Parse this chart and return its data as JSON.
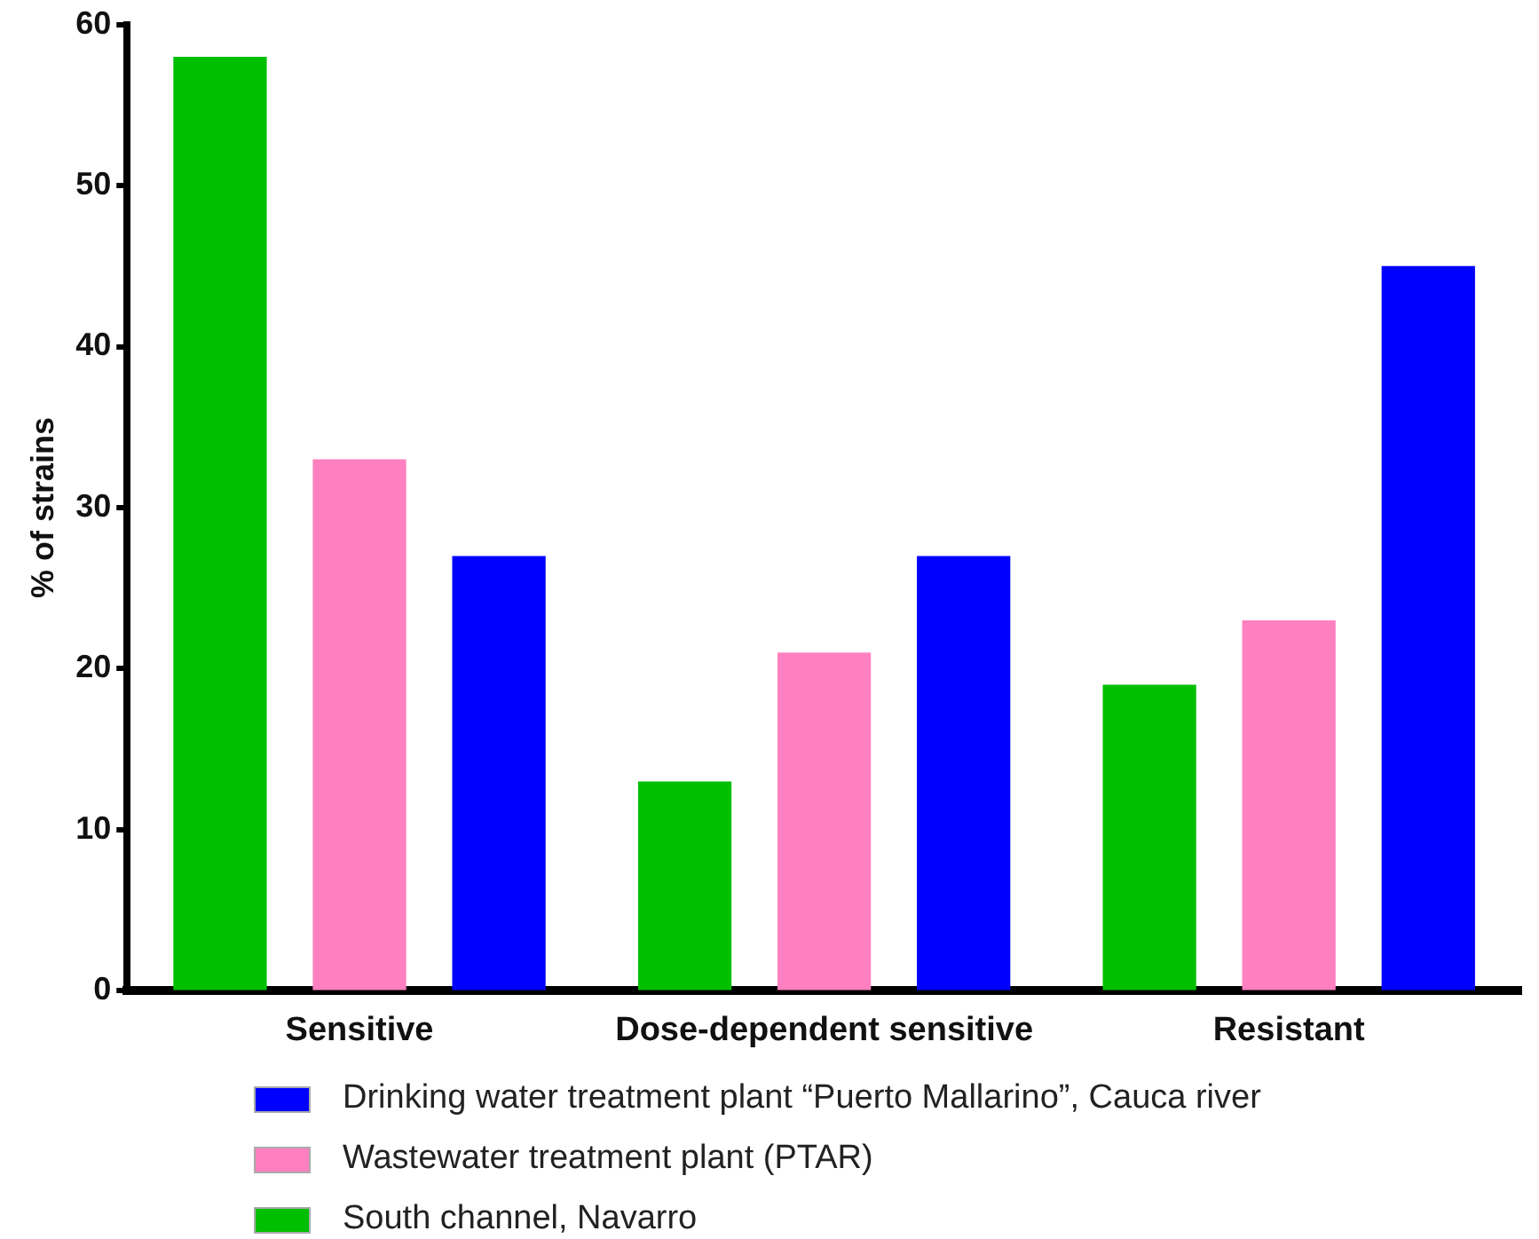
{
  "chart_data": {
    "type": "bar",
    "ylabel": "% of strains",
    "categories": [
      "Sensitive",
      "Dose-dependent sensitive",
      "Resistant"
    ],
    "series": [
      {
        "name": "South channel, Navarro",
        "color": "#00bf00",
        "values": [
          58,
          13,
          19
        ]
      },
      {
        "name": "Wastewater treatment plant (PTAR)",
        "color": "#ff80c0",
        "values": [
          33,
          21,
          23
        ]
      },
      {
        "name": "Drinking water treatment plant “Puerto Mallarino”, Cauca river",
        "color": "#0000ff",
        "values": [
          27,
          27,
          45
        ]
      }
    ],
    "ylim": [
      0,
      60
    ],
    "yticks": [
      0,
      10,
      20,
      30,
      40,
      50,
      60
    ],
    "grid": false,
    "legend": "bottom"
  }
}
